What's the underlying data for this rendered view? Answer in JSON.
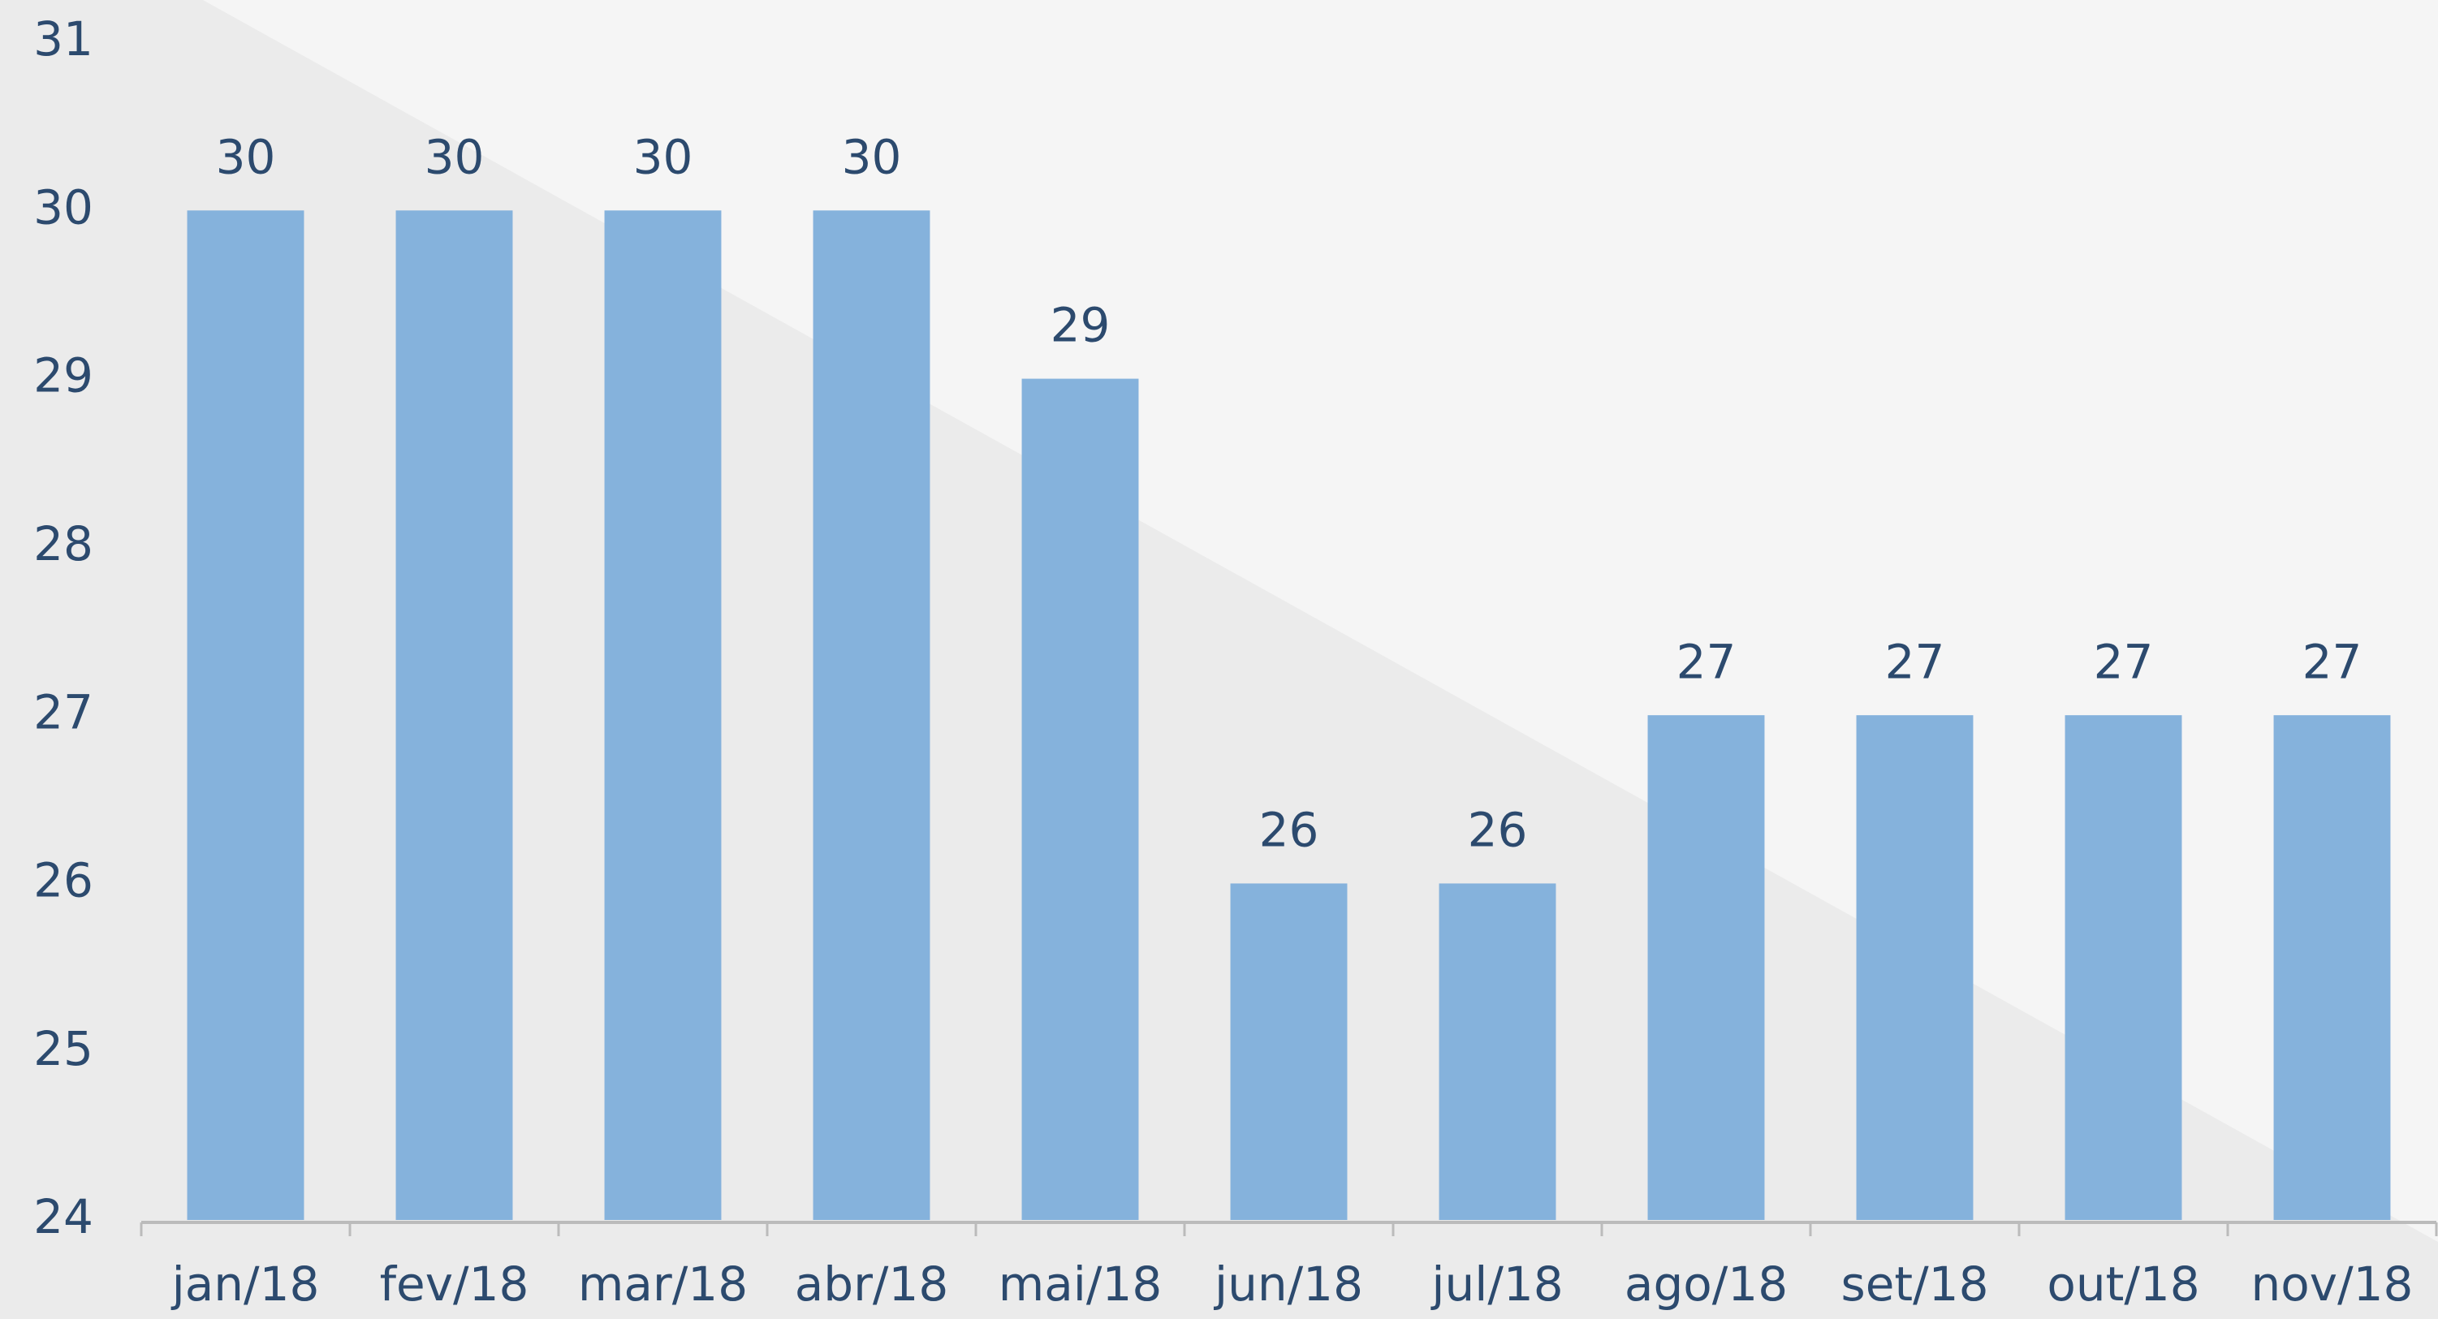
{
  "chart_data": {
    "type": "bar",
    "categories": [
      "jan/18",
      "fev/18",
      "mar/18",
      "abr/18",
      "mai/18",
      "jun/18",
      "jul/18",
      "ago/18",
      "set/18",
      "out/18",
      "nov/18"
    ],
    "values": [
      30,
      30,
      30,
      30,
      29,
      26,
      26,
      27,
      27,
      27,
      27
    ],
    "color": "#85b2dc",
    "ylim": [
      24,
      31
    ],
    "yticks": [
      24,
      25,
      26,
      27,
      28,
      29,
      30,
      31
    ],
    "grid": false
  }
}
